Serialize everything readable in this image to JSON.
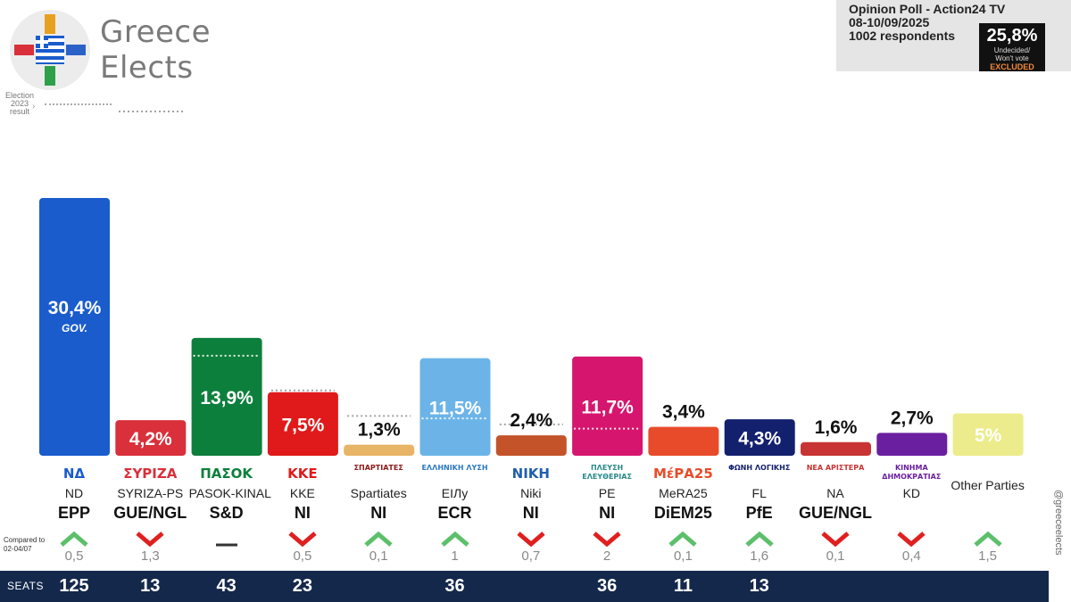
{
  "brand": {
    "line1": "Greece",
    "line2": "Elects"
  },
  "election_note": {
    "line1": "Election",
    "line2": "2023",
    "line3": "result"
  },
  "poll": {
    "title": "Opinion Poll - Action24 TV",
    "dates": "08-10/09/2025",
    "respondents": "1002 respondents",
    "undecided_pct": "25,8%",
    "undecided_line1": "Undecided/",
    "undecided_line2": "Won't vote",
    "undecided_excluded": "EXCLUDED"
  },
  "compared_to": {
    "line1": "Compared to",
    "line2": "02-04/07"
  },
  "seats_label": "SEATS",
  "handle": "@greeceelects",
  "chart_data": {
    "type": "bar",
    "categories": [
      "ND",
      "SYRIZA-PS",
      "PASOK-KINAL",
      "KKE",
      "Spartiates",
      "ElLy",
      "Niki",
      "PE",
      "MeRA25",
      "FL",
      "NA",
      "KD",
      "Other Parties"
    ],
    "values": [
      30.4,
      4.2,
      13.9,
      7.5,
      1.3,
      11.5,
      2.4,
      11.7,
      3.4,
      4.3,
      1.6,
      2.7,
      5
    ],
    "value_labels": [
      "30,4%",
      "4,2%",
      "13,9%",
      "7,5%",
      "1,3%",
      "11,5%",
      "2,4%",
      "11,7%",
      "3,4%",
      "4,3%",
      "1,6%",
      "2,7%",
      "5%"
    ],
    "election_2023": [
      40.6,
      null,
      11.8,
      7.7,
      4.7,
      4.4,
      3.7,
      3.2,
      null,
      null,
      null,
      null,
      null
    ],
    "colors": [
      "#1a5ccc",
      "#d9303b",
      "#0d7f3c",
      "#e01a1a",
      "#e8b465",
      "#6cb4e8",
      "#c4532a",
      "#d6166e",
      "#e84b2a",
      "#13206e",
      "#c83434",
      "#6a1fa0",
      "#ecec8c"
    ],
    "label_inside": [
      true,
      true,
      true,
      true,
      false,
      true,
      false,
      true,
      false,
      true,
      false,
      false,
      true
    ],
    "label_dark": [
      false,
      false,
      false,
      false,
      true,
      false,
      true,
      false,
      true,
      false,
      true,
      true,
      false
    ],
    "gov_note": "GOV.",
    "ylim": [
      0,
      32
    ],
    "grid": false,
    "legend": "none"
  },
  "parties": [
    {
      "name": "ND",
      "group": "EPP",
      "logo_text": "ΝΔ",
      "logo_color": "#1a5ccc",
      "change": "0,5",
      "direction": "up",
      "seats": "125"
    },
    {
      "name": "SYRIZA-PS",
      "group": "GUE/NGL",
      "logo_text": "ΣΥΡΙΖΑ",
      "logo_color": "#d9303b",
      "change": "1,3",
      "direction": "down",
      "seats": "13"
    },
    {
      "name": "PASOK-KINAL",
      "group": "S&D",
      "logo_text": "ΠΑΣΟΚ",
      "logo_color": "#0d7f3c",
      "change": "",
      "direction": "same",
      "seats": "43"
    },
    {
      "name": "KKE",
      "group": "NI",
      "logo_text": "ΚΚΕ",
      "logo_color": "#e01a1a",
      "change": "0,5",
      "direction": "down",
      "seats": "23"
    },
    {
      "name": "Spartiates",
      "group": "NI",
      "logo_text": "ΣΠΑΡΤΙΑΤΕΣ",
      "logo_color": "#8b1a1a",
      "change": "0,1",
      "direction": "up",
      "seats": ""
    },
    {
      "name": "EIЛy",
      "group": "ECR",
      "logo_text": "ΕΛΛΗΝΙΚΗ ΛΥΣΗ",
      "logo_color": "#2a7ac0",
      "change": "1",
      "direction": "up",
      "seats": "36"
    },
    {
      "name": "Niki",
      "group": "NI",
      "logo_text": "ΝΙΚΗ",
      "logo_color": "#1f5fae",
      "change": "0,7",
      "direction": "down",
      "seats": ""
    },
    {
      "name": "PE",
      "group": "NI",
      "logo_text": "ΠΛΕΥΣΗ ΕΛΕΥΘΕΡΙΑΣ",
      "logo_color": "#2a8a8a",
      "change": "2",
      "direction": "down",
      "seats": "36"
    },
    {
      "name": "MeRA25",
      "group": "DiEM25",
      "logo_text": "ΜέΡΑ25",
      "logo_color": "#e84b2a",
      "change": "0,1",
      "direction": "up",
      "seats": "11"
    },
    {
      "name": "FL",
      "group": "PfE",
      "logo_text": "ΦΩΝΗ ΛΟΓΙΚΗΣ",
      "logo_color": "#13206e",
      "change": "1,6",
      "direction": "up",
      "seats": "13"
    },
    {
      "name": "NA",
      "group": "GUE/NGL",
      "logo_text": "ΝΕΑ ΑΡΙΣΤΕΡΑ",
      "logo_color": "#c83434",
      "change": "0,1",
      "direction": "down",
      "seats": ""
    },
    {
      "name": "KD",
      "group": "",
      "logo_text": "ΚΙΝΗΜΑ ΔΗΜΟΚΡΑΤΙΑΣ",
      "logo_color": "#6a1fa0",
      "change": "0,4",
      "direction": "down",
      "seats": ""
    },
    {
      "name": "Other Parties",
      "group": "",
      "logo_text": "",
      "logo_color": "#444444",
      "change": "1,5",
      "direction": "up",
      "seats": ""
    }
  ]
}
